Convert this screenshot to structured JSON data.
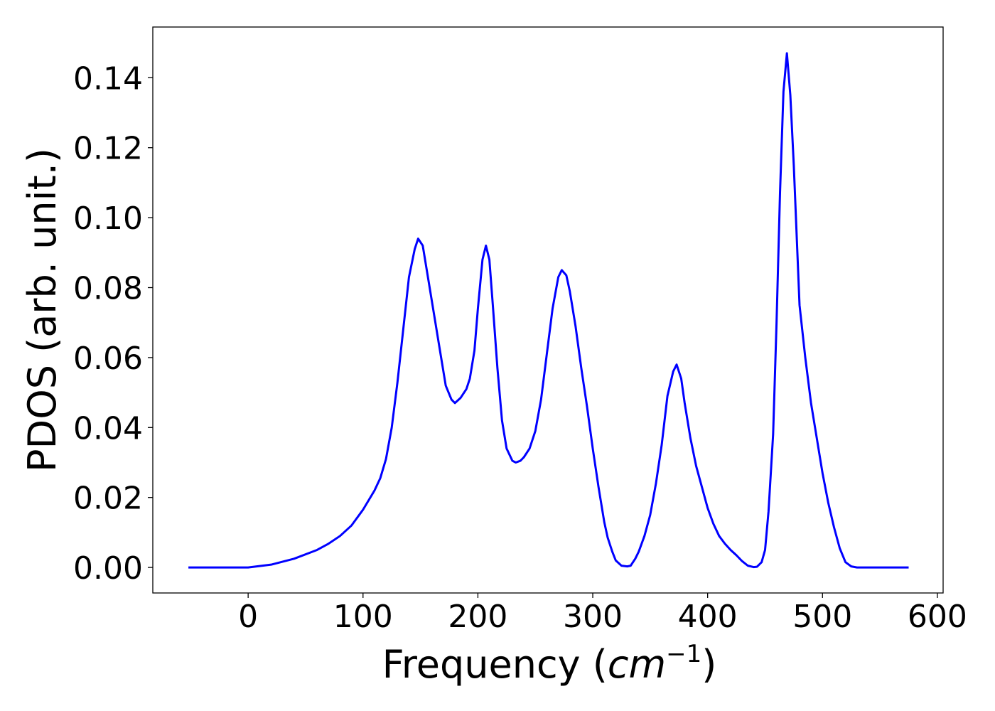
{
  "chart_data": {
    "type": "line",
    "title": "",
    "xlabel_prefix": "Frequency (",
    "xlabel_var": "cm",
    "xlabel_sup": "−1",
    "xlabel_suffix": ")",
    "ylabel": "PDOS (arb. unit.)",
    "xlim": [
      -83,
      605
    ],
    "ylim": [
      -0.0073,
      0.1545
    ],
    "xticks": [
      0,
      100,
      200,
      300,
      400,
      500,
      600
    ],
    "xtick_labels": [
      "0",
      "100",
      "200",
      "300",
      "400",
      "500",
      "600"
    ],
    "yticks": [
      0.0,
      0.02,
      0.04,
      0.06,
      0.08,
      0.1,
      0.12,
      0.14
    ],
    "ytick_labels": [
      "0.00",
      "0.02",
      "0.04",
      "0.06",
      "0.08",
      "0.10",
      "0.12",
      "0.14"
    ],
    "grid": false,
    "series": [
      {
        "color": "#0000ff",
        "x": [
          -52,
          0,
          20,
          40,
          60,
          70,
          80,
          90,
          100,
          110,
          115,
          120,
          125,
          130,
          135,
          140,
          145,
          148,
          152,
          157,
          162,
          167,
          172,
          177,
          180,
          185,
          190,
          193,
          197,
          200,
          204,
          207,
          210,
          213,
          217,
          221,
          225,
          230,
          233,
          237,
          240,
          245,
          250,
          255,
          260,
          265,
          270,
          273,
          277,
          280,
          285,
          290,
          295,
          300,
          305,
          310,
          313,
          317,
          320,
          325,
          330,
          333,
          337,
          340,
          345,
          350,
          355,
          360,
          365,
          370,
          373,
          377,
          380,
          385,
          390,
          395,
          400,
          405,
          410,
          415,
          420,
          425,
          430,
          435,
          440,
          443,
          447,
          450,
          453,
          457,
          460,
          463,
          466,
          469,
          472,
          475,
          480,
          485,
          490,
          495,
          500,
          505,
          510,
          515,
          520,
          525,
          530,
          535,
          545,
          575
        ],
        "y": [
          0,
          0,
          0.0008,
          0.0025,
          0.005,
          0.0068,
          0.009,
          0.012,
          0.0165,
          0.022,
          0.0255,
          0.031,
          0.04,
          0.053,
          0.068,
          0.083,
          0.091,
          0.094,
          0.092,
          0.082,
          0.072,
          0.062,
          0.052,
          0.048,
          0.047,
          0.0485,
          0.051,
          0.054,
          0.062,
          0.074,
          0.088,
          0.092,
          0.088,
          0.075,
          0.057,
          0.042,
          0.034,
          0.0305,
          0.03,
          0.0305,
          0.0315,
          0.034,
          0.039,
          0.048,
          0.061,
          0.074,
          0.083,
          0.085,
          0.0835,
          0.079,
          0.069,
          0.057,
          0.046,
          0.034,
          0.023,
          0.013,
          0.0085,
          0.0045,
          0.002,
          0.0005,
          0.0003,
          0.0005,
          0.0025,
          0.0045,
          0.009,
          0.015,
          0.024,
          0.035,
          0.049,
          0.056,
          0.058,
          0.054,
          0.047,
          0.037,
          0.029,
          0.023,
          0.017,
          0.0125,
          0.009,
          0.0068,
          0.005,
          0.0035,
          0.0018,
          0.0005,
          0.0001,
          0.0002,
          0.0015,
          0.005,
          0.016,
          0.038,
          0.07,
          0.107,
          0.136,
          0.147,
          0.135,
          0.115,
          0.075,
          0.06,
          0.047,
          0.037,
          0.027,
          0.0185,
          0.0115,
          0.0055,
          0.0015,
          0.0003,
          0,
          0,
          0,
          0
        ]
      }
    ]
  }
}
